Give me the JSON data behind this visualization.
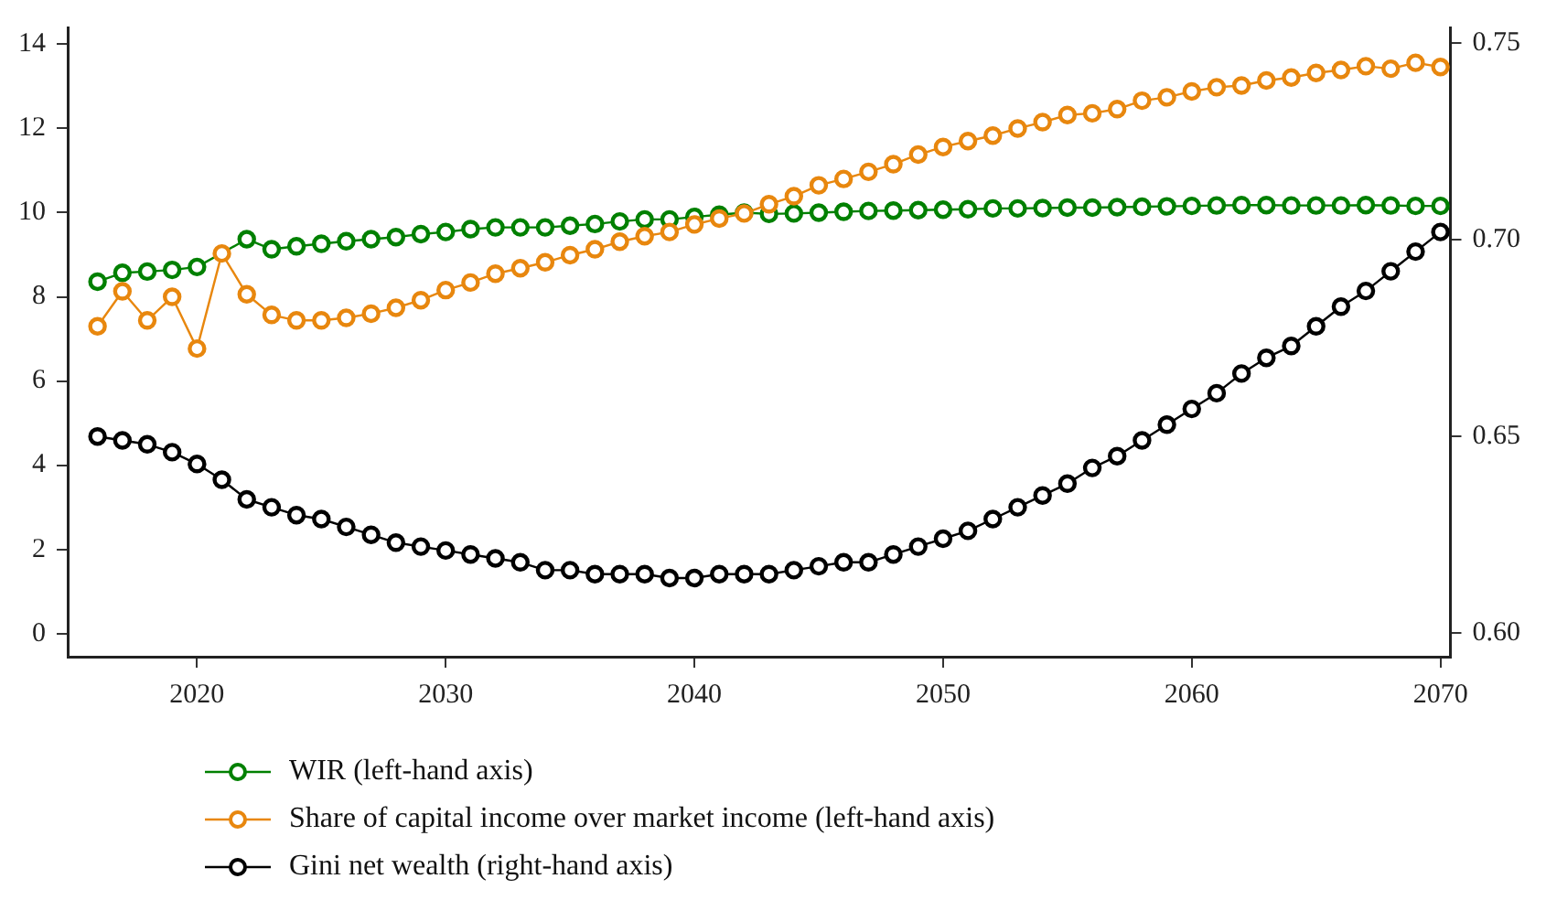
{
  "chart_data": {
    "type": "line",
    "x": [
      2016,
      2017,
      2018,
      2019,
      2020,
      2021,
      2022,
      2023,
      2024,
      2025,
      2026,
      2027,
      2028,
      2029,
      2030,
      2031,
      2032,
      2033,
      2034,
      2035,
      2036,
      2037,
      2038,
      2039,
      2040,
      2041,
      2042,
      2043,
      2044,
      2045,
      2046,
      2047,
      2048,
      2049,
      2050,
      2051,
      2052,
      2053,
      2054,
      2055,
      2056,
      2057,
      2058,
      2059,
      2060,
      2061,
      2062,
      2063,
      2064,
      2065,
      2066,
      2067,
      2068,
      2069,
      2070
    ],
    "series": [
      {
        "name": "WIR (left-hand axis)",
        "color": "#008000",
        "values": [
          8.36,
          8.57,
          8.6,
          8.64,
          8.71,
          null,
          9.37,
          9.13,
          9.2,
          9.26,
          9.32,
          9.37,
          9.42,
          9.49,
          9.54,
          9.61,
          9.65,
          9.65,
          9.65,
          9.69,
          9.73,
          9.79,
          9.84,
          9.84,
          9.9,
          9.95,
          10.0,
          9.97,
          9.98,
          10.0,
          10.02,
          10.04,
          10.05,
          10.06,
          10.07,
          10.08,
          10.1,
          10.1,
          10.11,
          10.12,
          10.12,
          10.13,
          10.14,
          10.15,
          10.16,
          10.17,
          10.18,
          10.18,
          10.17,
          10.17,
          10.17,
          10.18,
          10.17,
          10.16,
          10.16
        ]
      },
      {
        "name": "Share of capital income over market income (left-hand axis)",
        "color": "#e8870e",
        "values": [
          7.3,
          8.13,
          7.44,
          8.0,
          6.77,
          9.03,
          8.06,
          7.57,
          7.44,
          7.44,
          7.5,
          7.6,
          7.74,
          7.92,
          8.16,
          8.34,
          8.55,
          8.68,
          8.82,
          8.99,
          9.13,
          9.31,
          9.44,
          9.54,
          9.72,
          9.86,
          9.98,
          10.2,
          10.39,
          10.65,
          10.8,
          10.97,
          11.15,
          11.38,
          11.56,
          11.7,
          11.83,
          12.0,
          12.15,
          12.32,
          12.36,
          12.46,
          12.66,
          12.74,
          12.88,
          12.98,
          13.02,
          13.14,
          13.21,
          13.32,
          13.39,
          13.48,
          13.42,
          13.56,
          13.46
        ]
      },
      {
        "name": "Gini net wealth (right-hand axis)",
        "color": "#000000",
        "axis": "y2",
        "values": [
          0.65,
          0.649,
          0.648,
          0.646,
          0.643,
          0.639,
          0.634,
          0.632,
          0.63,
          0.629,
          0.627,
          0.625,
          0.623,
          0.622,
          0.621,
          0.62,
          0.619,
          0.618,
          0.616,
          0.616,
          0.615,
          0.615,
          0.615,
          0.614,
          0.614,
          0.615,
          0.615,
          0.615,
          0.616,
          0.617,
          0.618,
          0.618,
          0.62,
          0.622,
          0.624,
          0.626,
          0.629,
          0.632,
          0.635,
          0.638,
          0.642,
          0.645,
          0.649,
          0.653,
          0.657,
          0.661,
          0.666,
          0.67,
          0.673,
          0.678,
          0.683,
          0.687,
          0.692,
          0.697,
          0.702
        ]
      }
    ],
    "xlim": [
      2014.8,
      2070.4
    ],
    "xticks": [
      2020,
      2030,
      2040,
      2050,
      2060,
      2070
    ],
    "ylim": [
      -0.55,
      14.4
    ],
    "yticks": [
      0,
      2,
      4,
      6,
      8,
      10,
      12,
      14
    ],
    "y2lim": [
      0.594,
      0.754
    ],
    "y2ticks": [
      {
        "value": 0.6,
        "label": "0.60"
      },
      {
        "value": 0.65,
        "label": "0.65"
      },
      {
        "value": 0.7,
        "label": "0.70"
      },
      {
        "value": 0.75,
        "label": "0.75"
      }
    ],
    "grid": false,
    "legend": "bottom",
    "marker": "circle",
    "line_style": "solid"
  }
}
